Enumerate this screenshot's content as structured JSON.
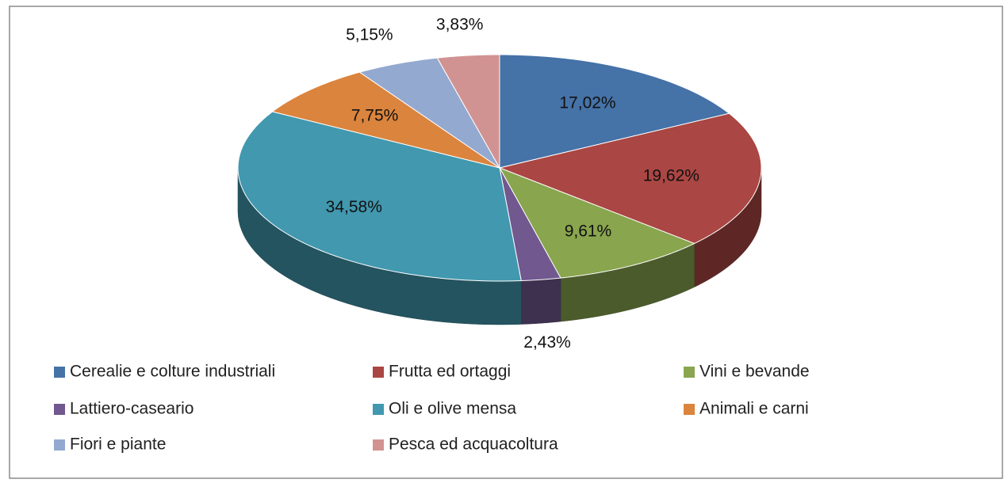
{
  "chart_data": {
    "type": "pie3d",
    "categories": [
      "Cerealie e colture industriali",
      "Frutta ed ortaggi",
      "Vini e bevande",
      "Lattiero-caseario",
      "Oli e olive mensa",
      "Animali e carni",
      "Fiori e piante",
      "Pesca ed acquacoltura"
    ],
    "values": [
      17.02,
      19.62,
      9.61,
      2.43,
      34.58,
      7.75,
      5.15,
      3.83
    ],
    "value_labels": [
      "17,02%",
      "19,62%",
      "9,61%",
      "2,43%",
      "34,58%",
      "7,75%",
      "5,15%",
      "3,83%"
    ],
    "colors": [
      "#4572a7",
      "#aa4643",
      "#89a54e",
      "#71588f",
      "#4198af",
      "#db843d",
      "#93a9cf",
      "#d19392"
    ],
    "legend": "bottom"
  }
}
